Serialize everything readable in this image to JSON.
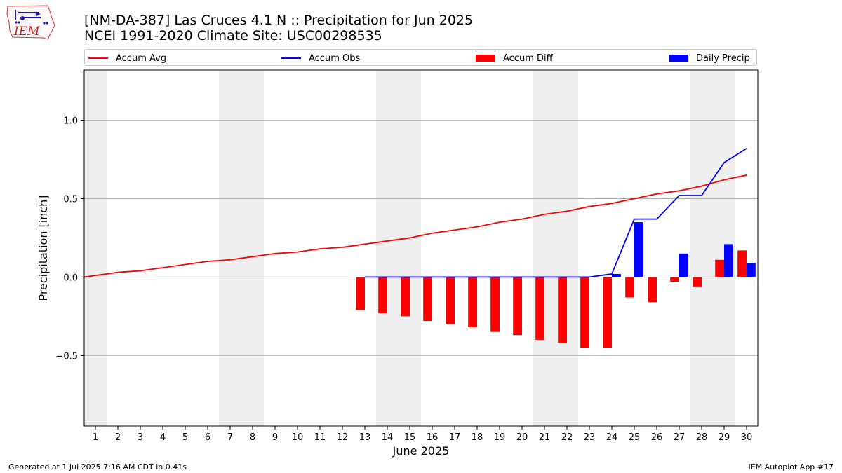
{
  "header": {
    "title_line1": "[NM-DA-387] Las Cruces 4.1 N :: Precipitation for Jun 2025",
    "title_line2": "NCEI 1991-2020 Climate Site: USC00298535"
  },
  "logo": {
    "text": "IEM",
    "icon": "iem-iowa-logo-icon"
  },
  "legend": {
    "items": [
      {
        "label": "Accum Avg",
        "kind": "line",
        "color": "#ff0000"
      },
      {
        "label": "Accum Obs",
        "kind": "line",
        "color": "#0000ff"
      },
      {
        "label": "Accum Diff",
        "kind": "bar",
        "color": "#ff0000"
      },
      {
        "label": "Daily Precip",
        "kind": "bar",
        "color": "#0000ff"
      }
    ],
    "placement": "top"
  },
  "footer": {
    "left": "Generated at 1 Jul 2025 7:16 AM CDT in 0.41s",
    "right": "IEM Autoplot App #17"
  },
  "chart_data": {
    "type": "line",
    "title": "[NM-DA-387] Las Cruces 4.1 N :: Precipitation for Jun 2025",
    "xlabel": "June 2025",
    "ylabel": "Precipitation [inch]",
    "xlim": [
      0.5,
      30.5
    ],
    "ylim": [
      -0.95,
      1.32
    ],
    "yticks": [
      -0.5,
      0.0,
      0.5,
      1.0
    ],
    "ytick_labels": [
      "−0.5",
      "0.0",
      "0.5",
      "1.0"
    ],
    "x": [
      1,
      2,
      3,
      4,
      5,
      6,
      7,
      8,
      9,
      10,
      11,
      12,
      13,
      14,
      15,
      16,
      17,
      18,
      19,
      20,
      21,
      22,
      23,
      24,
      25,
      26,
      27,
      28,
      29,
      30
    ],
    "grid": "horizontal",
    "weekend_shading": [
      [
        0.5,
        1.5
      ],
      [
        6.5,
        8.5
      ],
      [
        13.5,
        15.5
      ],
      [
        20.5,
        22.5
      ],
      [
        27.5,
        29.5
      ]
    ],
    "series": [
      {
        "name": "Accum Avg",
        "kind": "line",
        "color": "#ff0000",
        "start": [
          0.5,
          0.0
        ],
        "values": [
          0.01,
          0.03,
          0.04,
          0.06,
          0.08,
          0.1,
          0.11,
          0.13,
          0.15,
          0.16,
          0.18,
          0.19,
          0.21,
          0.23,
          0.25,
          0.28,
          0.3,
          0.32,
          0.35,
          0.37,
          0.4,
          0.42,
          0.45,
          0.47,
          0.5,
          0.53,
          0.55,
          0.58,
          0.62,
          0.65
        ]
      },
      {
        "name": "Accum Obs",
        "kind": "line",
        "color": "#0000ff",
        "x": [
          13,
          14,
          15,
          16,
          17,
          18,
          19,
          20,
          21,
          22,
          23,
          24,
          25,
          26,
          27,
          28,
          29,
          30
        ],
        "values": [
          0.0,
          0.0,
          0.0,
          0.0,
          0.0,
          0.0,
          0.0,
          0.0,
          0.0,
          0.0,
          0.0,
          0.02,
          0.37,
          0.37,
          0.52,
          0.52,
          0.73,
          0.82
        ]
      },
      {
        "name": "Accum Diff",
        "kind": "bar",
        "color": "#ff0000",
        "offset": -0.2,
        "x": [
          13,
          14,
          15,
          16,
          17,
          18,
          19,
          20,
          21,
          22,
          23,
          24,
          25,
          26,
          27,
          28,
          29,
          30
        ],
        "values": [
          -0.21,
          -0.23,
          -0.25,
          -0.28,
          -0.3,
          -0.32,
          -0.35,
          -0.37,
          -0.4,
          -0.42,
          -0.45,
          -0.45,
          -0.13,
          -0.16,
          -0.03,
          -0.06,
          0.11,
          0.17
        ]
      },
      {
        "name": "Daily Precip",
        "kind": "bar",
        "color": "#0000ff",
        "offset": 0.2,
        "x": [
          24,
          25,
          27,
          29,
          30
        ],
        "values": [
          0.02,
          0.35,
          0.15,
          0.21,
          0.09
        ]
      }
    ]
  }
}
